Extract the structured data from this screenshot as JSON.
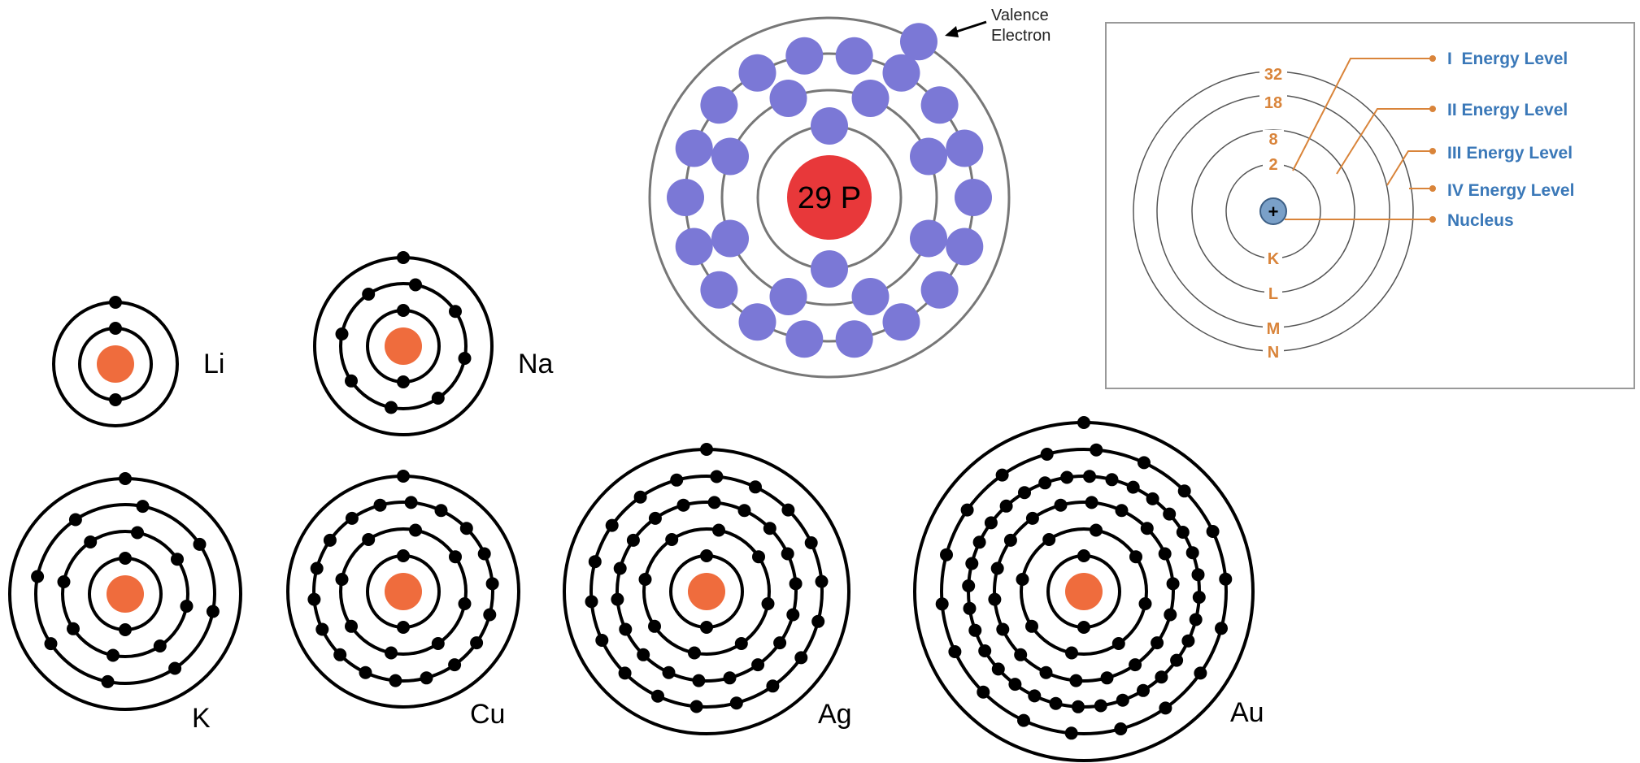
{
  "atoms": [
    {
      "symbol": "Li",
      "shells": [
        2,
        1
      ]
    },
    {
      "symbol": "Na",
      "shells": [
        2,
        8,
        1
      ]
    },
    {
      "symbol": "K",
      "shells": [
        2,
        8,
        8,
        1
      ]
    },
    {
      "symbol": "Cu",
      "shells": [
        2,
        8,
        18,
        1
      ]
    },
    {
      "symbol": "Ag",
      "shells": [
        2,
        8,
        18,
        18,
        1
      ]
    },
    {
      "symbol": "Au",
      "shells": [
        2,
        8,
        18,
        32,
        18,
        1
      ]
    }
  ],
  "copper": {
    "nucleus_label": "29 P",
    "shells": [
      2,
      8,
      18,
      1
    ],
    "valence_label_line1": "Valence",
    "valence_label_line2": "Electron"
  },
  "energy_levels": {
    "capacities": [
      "32",
      "18",
      "8",
      "2"
    ],
    "shell_letters": [
      "K",
      "L",
      "M",
      "N"
    ],
    "nucleus_symbol": "+",
    "labels": [
      "I  Energy Level",
      "II Energy Level",
      "III Energy Level",
      "IV Energy Level",
      "Nucleus"
    ]
  },
  "colors": {
    "nucleus_small": "#ef6c3d",
    "electron_small": "#000000",
    "electron_copper": "#7b78d6",
    "nucleus_copper": "#e8383a",
    "orange_text": "#d9843a",
    "blue_text": "#3a78b8"
  }
}
